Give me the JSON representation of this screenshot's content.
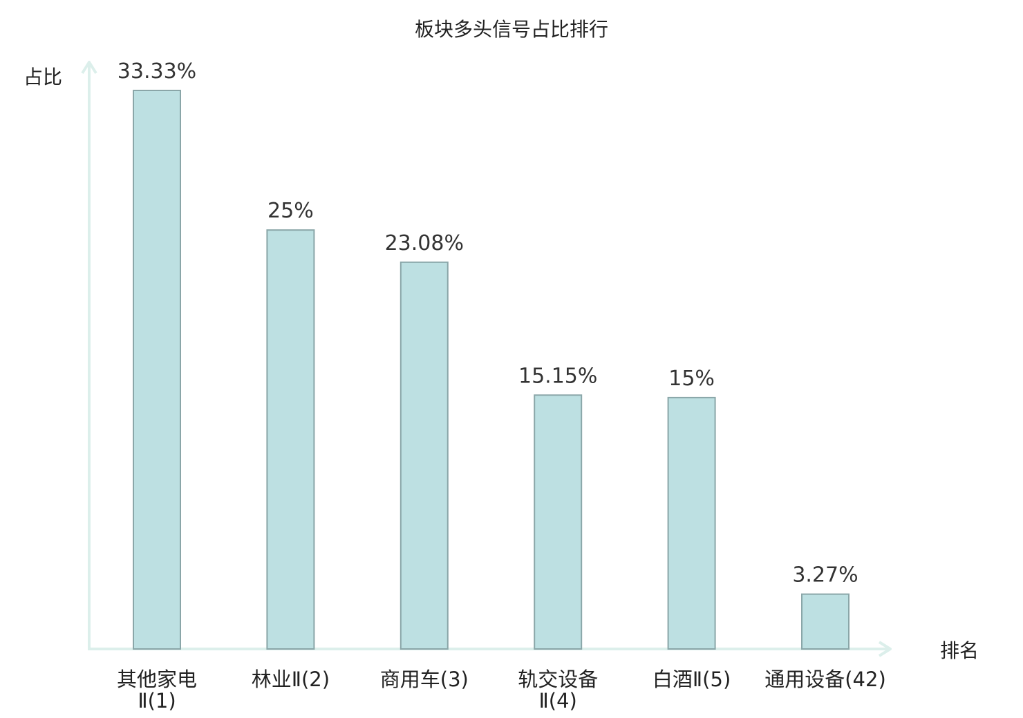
{
  "chart_data": {
    "type": "bar",
    "title": "板块多头信号占比排行",
    "ylabel": "占比",
    "xlabel": "排名",
    "categories": [
      [
        "其他家电",
        "Ⅱ(1)"
      ],
      [
        "林业Ⅱ(2)"
      ],
      [
        "商用车(3)"
      ],
      [
        "轨交设备",
        "Ⅱ(4)"
      ],
      [
        "白酒Ⅱ(5)"
      ],
      [
        "通用设备(42)"
      ]
    ],
    "values": [
      33.33,
      25,
      23.08,
      15.15,
      15,
      3.27
    ],
    "value_labels": [
      "33.33%",
      "25%",
      "23.08%",
      "15.15%",
      "15%",
      "3.27%"
    ],
    "highlight_index": 5,
    "ylim": [
      0,
      35
    ],
    "grid": false,
    "colors": {
      "bar_fill": "#bde0e2",
      "bar_stroke": "#8aa6a8",
      "axis": "#dcefeb",
      "highlight_text": "#e0201c"
    }
  }
}
